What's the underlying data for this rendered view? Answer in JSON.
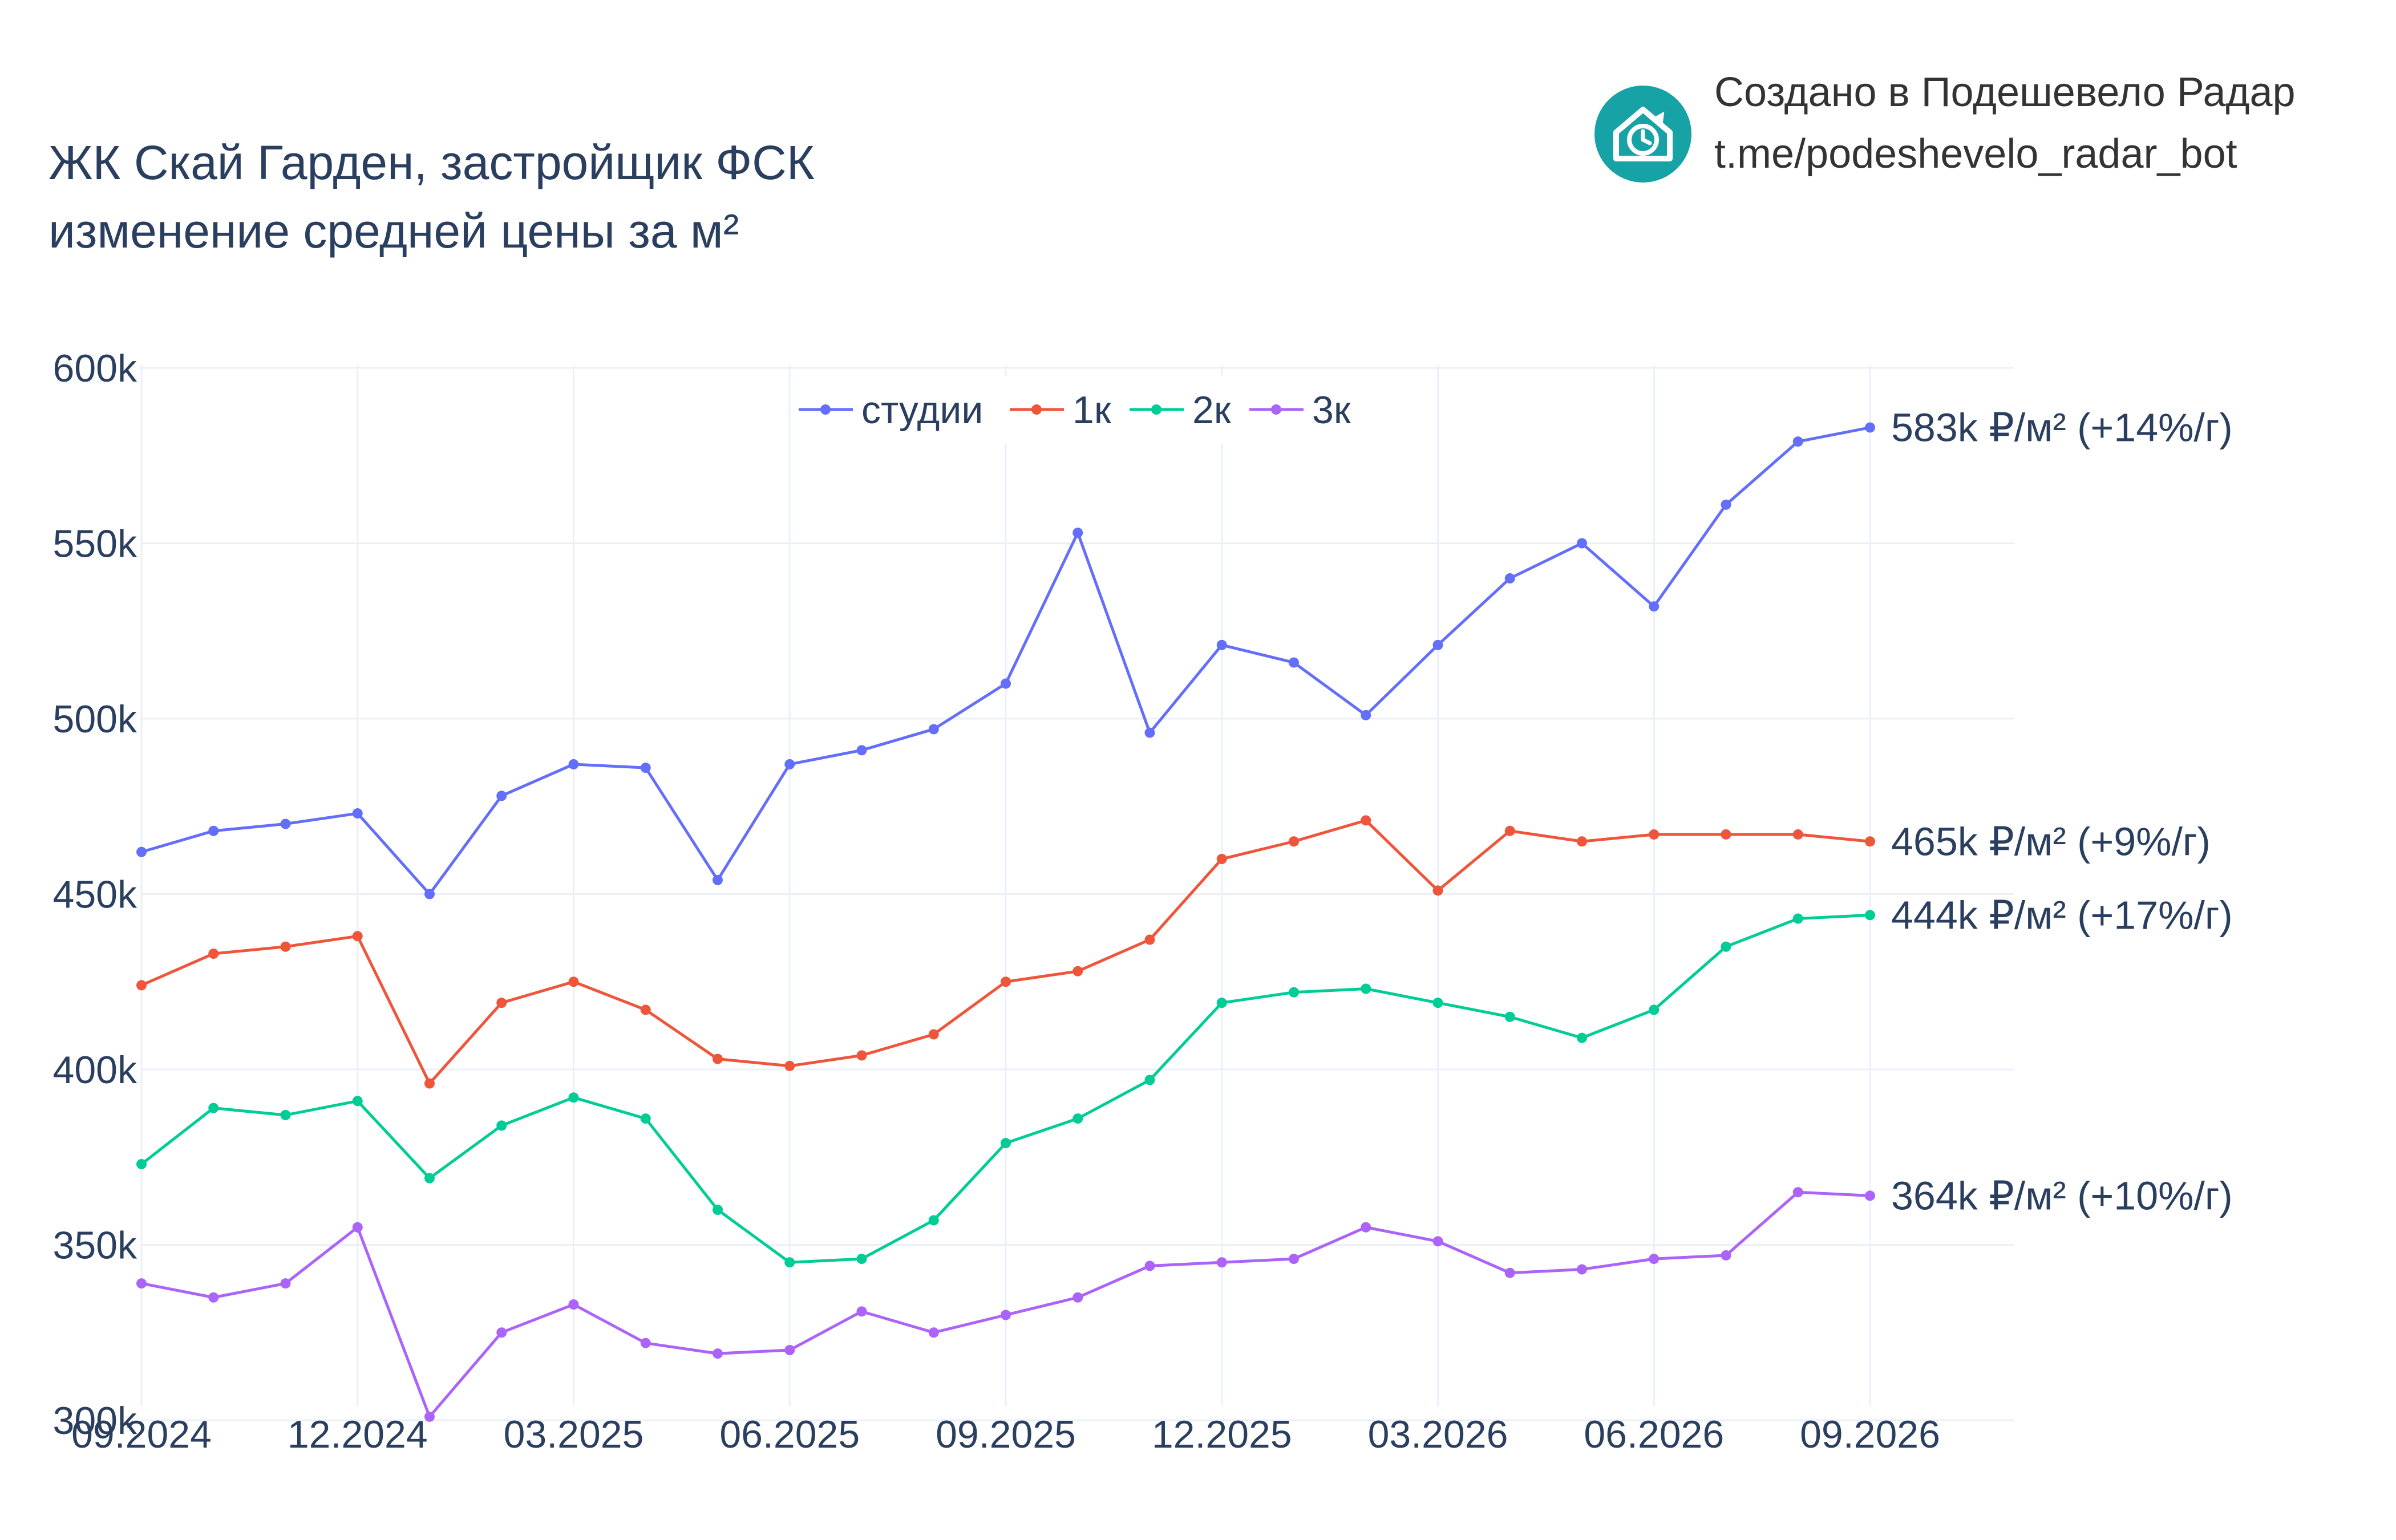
{
  "header": {
    "title_line1": "ЖК Скай Гарден, застройщик ФСК",
    "title_line2": "изменение средней цены за м²",
    "brand_line1": "Создано в Подешевело Радар",
    "brand_line2": "t.me/podeshevelo_radar_bot",
    "brand_icon": "house-clock-icon",
    "brand_color": "#17a2a6"
  },
  "chart_data": {
    "type": "line",
    "title": "ЖК Скай Гарден, застройщик ФСК — изменение средней цены за м²",
    "xlabel": "",
    "ylabel": "",
    "x": [
      "2024-09",
      "2024-10",
      "2024-11",
      "2024-12",
      "2025-01",
      "2025-02",
      "2025-03",
      "2025-04",
      "2025-05",
      "2025-06",
      "2025-07",
      "2025-08",
      "2025-09",
      "2025-10",
      "2025-11",
      "2025-12",
      "2026-01",
      "2026-02",
      "2026-03",
      "2026-04",
      "2026-05",
      "2026-06",
      "2026-07",
      "2026-08",
      "2026-09"
    ],
    "x_tick_labels": [
      "09.2024",
      "12.2024",
      "03.2025",
      "06.2025",
      "09.2025",
      "12.2025",
      "03.2026",
      "06.2026",
      "09.2026"
    ],
    "x_tick_indices": [
      0,
      3,
      6,
      9,
      12,
      15,
      18,
      21,
      24
    ],
    "ylim": [
      285000,
      600000
    ],
    "y_ticks": [
      300000,
      350000,
      400000,
      450000,
      500000,
      550000,
      600000
    ],
    "y_tick_labels": [
      "300k",
      "350k",
      "400k",
      "450k",
      "500k",
      "550k",
      "600k"
    ],
    "grid": true,
    "legend_position": "top-center",
    "series": [
      {
        "name": "студии",
        "color": "#636efa",
        "values": [
          462000,
          468000,
          470000,
          473000,
          450000,
          478000,
          487000,
          486000,
          454000,
          487000,
          491000,
          497000,
          510000,
          553000,
          496000,
          521000,
          516000,
          501000,
          521000,
          540000,
          550000,
          532000,
          561000,
          579000,
          583000
        ],
        "end_label": "583k ₽/м² (+14%/г)"
      },
      {
        "name": "1к",
        "color": "#ef553b",
        "values": [
          424000,
          433000,
          435000,
          438000,
          396000,
          419000,
          425000,
          417000,
          403000,
          401000,
          404000,
          410000,
          425000,
          428000,
          437000,
          460000,
          465000,
          471000,
          451000,
          468000,
          465000,
          467000,
          467000,
          467000,
          465000
        ],
        "end_label": "465k ₽/м² (+9%/г)"
      },
      {
        "name": "2к",
        "color": "#00cc96",
        "values": [
          373000,
          389000,
          387000,
          391000,
          369000,
          384000,
          392000,
          386000,
          360000,
          345000,
          346000,
          357000,
          379000,
          386000,
          397000,
          419000,
          422000,
          423000,
          419000,
          415000,
          409000,
          417000,
          435000,
          443000,
          444000
        ],
        "end_label": "444k ₽/м² (+17%/г)"
      },
      {
        "name": "3к",
        "color": "#ab63fa",
        "values": [
          339000,
          335000,
          339000,
          355000,
          301000,
          325000,
          333000,
          322000,
          319000,
          320000,
          331000,
          325000,
          330000,
          335000,
          344000,
          345000,
          346000,
          355000,
          351000,
          342000,
          343000,
          346000,
          347000,
          365000,
          364000
        ],
        "end_label": "364k ₽/м² (+10%/г)"
      }
    ]
  }
}
